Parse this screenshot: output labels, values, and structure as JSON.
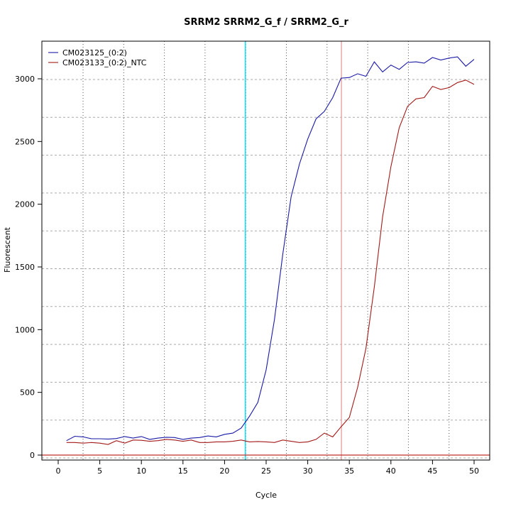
{
  "chart_data": {
    "type": "line",
    "title": "SRRM2  SRRM2_G_f / SRRM2_G_r",
    "xlabel": "Cycle",
    "ylabel": "Fluorescent",
    "xlim": [
      -2,
      52
    ],
    "ylim": [
      -35,
      3320
    ],
    "xticks": [
      0,
      5,
      10,
      15,
      20,
      25,
      30,
      35,
      40,
      45,
      50
    ],
    "yticks": [
      0,
      500,
      1000,
      1500,
      2000,
      2500,
      3000
    ],
    "grid": true,
    "legend_position": "top-left",
    "x": [
      1,
      2,
      3,
      4,
      5,
      6,
      7,
      8,
      9,
      10,
      11,
      12,
      13,
      14,
      15,
      16,
      17,
      18,
      19,
      20,
      21,
      22,
      23,
      24,
      25,
      26,
      27,
      28,
      29,
      30,
      31,
      32,
      33,
      34,
      35,
      36,
      37,
      38,
      39,
      40,
      41,
      42,
      43,
      44,
      45,
      46,
      47,
      48,
      49,
      50
    ],
    "series": [
      {
        "name": "CM023125_(0:2)",
        "color": "#1a1aa6",
        "values": [
          115,
          150,
          145,
          130,
          130,
          128,
          132,
          148,
          135,
          148,
          125,
          135,
          142,
          140,
          125,
          135,
          140,
          152,
          145,
          165,
          175,
          215,
          310,
          420,
          680,
          1080,
          1600,
          2060,
          2320,
          2520,
          2680,
          2740,
          2850,
          3005,
          3010,
          3040,
          3020,
          3135,
          3055,
          3110,
          3075,
          3130,
          3135,
          3125,
          3170,
          3150,
          3165,
          3175,
          3100,
          3155
        ]
      },
      {
        "name": "CM023133_(0:2)_NTC",
        "color": "#a31a1a",
        "values": [
          100,
          100,
          95,
          100,
          95,
          85,
          115,
          95,
          120,
          118,
          110,
          115,
          125,
          120,
          110,
          120,
          100,
          100,
          105,
          105,
          110,
          120,
          105,
          108,
          105,
          100,
          120,
          110,
          100,
          105,
          125,
          175,
          145,
          225,
          300,
          540,
          850,
          1340,
          1900,
          2300,
          2610,
          2780,
          2840,
          2850,
          2940,
          2915,
          2930,
          2970,
          2990,
          2955
        ]
      }
    ],
    "vertical_lines": [
      {
        "x": 22.5,
        "color": "#00e5ff"
      },
      {
        "x": 34.05,
        "color": "#e8a8a8"
      }
    ],
    "horizontal_lines": [
      {
        "y": 0,
        "color": "#c0302a"
      }
    ]
  }
}
